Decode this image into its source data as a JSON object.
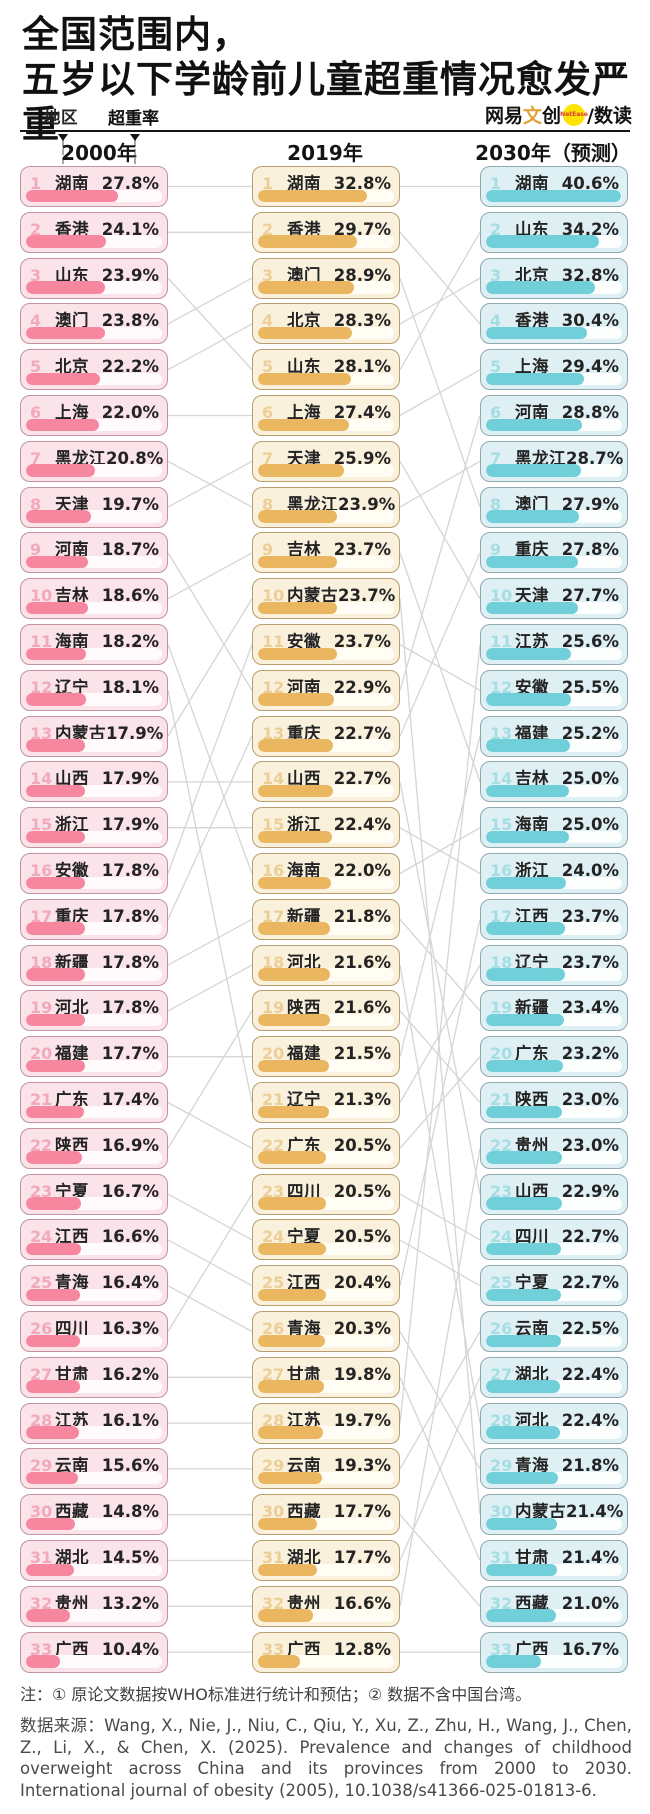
{
  "title": {
    "line1": "全国范围内，",
    "line2": "五岁以下学龄前儿童超重情况愈发严重"
  },
  "header": {
    "region_label": "地区",
    "rate_label": "超重率",
    "logo": {
      "brand_prefix": "网易",
      "brand_accent": "文",
      "brand_suffix": "创",
      "badge": "NetEase",
      "channel": "/数读"
    }
  },
  "chart_data": {
    "type": "bar",
    "subtype": "slopegraph-ranked-bars",
    "title": "全国范围内，五岁以下学龄前儿童超重情况愈发严重",
    "unit": "%",
    "bar_axis_max": 41,
    "legend_position": "column-headers-top",
    "columns": [
      {
        "label": "2000年",
        "theme": {
          "card_bg": "#fae3e9",
          "card_border": "#c2939e",
          "rank_color": "#f2a9bc",
          "bar_color": "#f6879f",
          "track_color": "#fffbfc"
        },
        "rows": [
          {
            "rank": 1,
            "region": "湖南",
            "label": "27.8%",
            "value": 27.8
          },
          {
            "rank": 2,
            "region": "香港",
            "label": "24.1%",
            "value": 24.1
          },
          {
            "rank": 3,
            "region": "山东",
            "label": "23.9%",
            "value": 23.9
          },
          {
            "rank": 4,
            "region": "澳门",
            "label": "23.8%",
            "value": 23.8
          },
          {
            "rank": 5,
            "region": "北京",
            "label": "22.2%",
            "value": 22.2
          },
          {
            "rank": 6,
            "region": "上海",
            "label": "22.0%",
            "value": 22.0
          },
          {
            "rank": 7,
            "region": "黑龙江",
            "label": "20.8%",
            "value": 20.8
          },
          {
            "rank": 8,
            "region": "天津",
            "label": "19.7%",
            "value": 19.7
          },
          {
            "rank": 9,
            "region": "河南",
            "label": "18.7%",
            "value": 18.7
          },
          {
            "rank": 10,
            "region": "吉林",
            "label": "18.6%",
            "value": 18.6
          },
          {
            "rank": 11,
            "region": "海南",
            "label": "18.2%",
            "value": 18.2
          },
          {
            "rank": 12,
            "region": "辽宁",
            "label": "18.1%",
            "value": 18.1
          },
          {
            "rank": 13,
            "region": "内蒙古",
            "label": "17.9%",
            "value": 17.9
          },
          {
            "rank": 14,
            "region": "山西",
            "label": "17.9%",
            "value": 17.9
          },
          {
            "rank": 15,
            "region": "浙江",
            "label": "17.9%",
            "value": 17.9
          },
          {
            "rank": 16,
            "region": "安徽",
            "label": "17.8%",
            "value": 17.8
          },
          {
            "rank": 17,
            "region": "重庆",
            "label": "17.8%",
            "value": 17.8
          },
          {
            "rank": 18,
            "region": "新疆",
            "label": "17.8%",
            "value": 17.8
          },
          {
            "rank": 19,
            "region": "河北",
            "label": "17.8%",
            "value": 17.8
          },
          {
            "rank": 20,
            "region": "福建",
            "label": "17.7%",
            "value": 17.7
          },
          {
            "rank": 21,
            "region": "广东",
            "label": "17.4%",
            "value": 17.4
          },
          {
            "rank": 22,
            "region": "陕西",
            "label": "16.9%",
            "value": 16.9
          },
          {
            "rank": 23,
            "region": "宁夏",
            "label": "16.7%",
            "value": 16.7
          },
          {
            "rank": 24,
            "region": "江西",
            "label": "16.6%",
            "value": 16.6
          },
          {
            "rank": 25,
            "region": "青海",
            "label": "16.4%",
            "value": 16.4
          },
          {
            "rank": 26,
            "region": "四川",
            "label": "16.3%",
            "value": 16.3
          },
          {
            "rank": 27,
            "region": "甘肃",
            "label": "16.2%",
            "value": 16.2
          },
          {
            "rank": 28,
            "region": "江苏",
            "label": "16.1%",
            "value": 16.1
          },
          {
            "rank": 29,
            "region": "云南",
            "label": "15.6%",
            "value": 15.6
          },
          {
            "rank": 30,
            "region": "西藏",
            "label": "14.8%",
            "value": 14.8
          },
          {
            "rank": 31,
            "region": "湖北",
            "label": "14.5%",
            "value": 14.5
          },
          {
            "rank": 32,
            "region": "贵州",
            "label": "13.2%",
            "value": 13.2
          },
          {
            "rank": 33,
            "region": "广西",
            "label": "10.4%",
            "value": 10.4
          }
        ]
      },
      {
        "label": "2019年",
        "theme": {
          "card_bg": "#faf1dd",
          "card_border": "#b89d70",
          "rank_color": "#ecce97",
          "bar_color": "#eab760",
          "track_color": "#fffdf4"
        },
        "rows": [
          {
            "rank": 1,
            "region": "湖南",
            "label": "32.8%",
            "value": 32.8
          },
          {
            "rank": 2,
            "region": "香港",
            "label": "29.7%",
            "value": 29.7
          },
          {
            "rank": 3,
            "region": "澳门",
            "label": "28.9%",
            "value": 28.9
          },
          {
            "rank": 4,
            "region": "北京",
            "label": "28.3%",
            "value": 28.3
          },
          {
            "rank": 5,
            "region": "山东",
            "label": "28.1%",
            "value": 28.1
          },
          {
            "rank": 6,
            "region": "上海",
            "label": "27.4%",
            "value": 27.4
          },
          {
            "rank": 7,
            "region": "天津",
            "label": "25.9%",
            "value": 25.9
          },
          {
            "rank": 8,
            "region": "黑龙江",
            "label": "23.9%",
            "value": 23.9
          },
          {
            "rank": 9,
            "region": "吉林",
            "label": "23.7%",
            "value": 23.7
          },
          {
            "rank": 10,
            "region": "内蒙古",
            "label": "23.7%",
            "value": 23.7
          },
          {
            "rank": 11,
            "region": "安徽",
            "label": "23.7%",
            "value": 23.7
          },
          {
            "rank": 12,
            "region": "河南",
            "label": "22.9%",
            "value": 22.9
          },
          {
            "rank": 13,
            "region": "重庆",
            "label": "22.7%",
            "value": 22.7
          },
          {
            "rank": 14,
            "region": "山西",
            "label": "22.7%",
            "value": 22.7
          },
          {
            "rank": 15,
            "region": "浙江",
            "label": "22.4%",
            "value": 22.4
          },
          {
            "rank": 16,
            "region": "海南",
            "label": "22.0%",
            "value": 22.0
          },
          {
            "rank": 17,
            "region": "新疆",
            "label": "21.8%",
            "value": 21.8
          },
          {
            "rank": 18,
            "region": "河北",
            "label": "21.6%",
            "value": 21.6
          },
          {
            "rank": 19,
            "region": "陕西",
            "label": "21.6%",
            "value": 21.6
          },
          {
            "rank": 20,
            "region": "福建",
            "label": "21.5%",
            "value": 21.5
          },
          {
            "rank": 21,
            "region": "辽宁",
            "label": "21.3%",
            "value": 21.3
          },
          {
            "rank": 22,
            "region": "广东",
            "label": "20.5%",
            "value": 20.5
          },
          {
            "rank": 23,
            "region": "四川",
            "label": "20.5%",
            "value": 20.5
          },
          {
            "rank": 24,
            "region": "宁夏",
            "label": "20.5%",
            "value": 20.5
          },
          {
            "rank": 25,
            "region": "江西",
            "label": "20.4%",
            "value": 20.4
          },
          {
            "rank": 26,
            "region": "青海",
            "label": "20.3%",
            "value": 20.3
          },
          {
            "rank": 27,
            "region": "甘肃",
            "label": "19.8%",
            "value": 19.8
          },
          {
            "rank": 28,
            "region": "江苏",
            "label": "19.7%",
            "value": 19.7
          },
          {
            "rank": 29,
            "region": "云南",
            "label": "19.3%",
            "value": 19.3
          },
          {
            "rank": 30,
            "region": "西藏",
            "label": "17.7%",
            "value": 17.7
          },
          {
            "rank": 31,
            "region": "湖北",
            "label": "17.7%",
            "value": 17.7
          },
          {
            "rank": 32,
            "region": "贵州",
            "label": "16.6%",
            "value": 16.6
          },
          {
            "rank": 33,
            "region": "广西",
            "label": "12.8%",
            "value": 12.8
          }
        ]
      },
      {
        "label": "2030年（预测）",
        "theme": {
          "card_bg": "#dff0f5",
          "card_border": "#8fa9ae",
          "rank_color": "#a5dde5",
          "bar_color": "#71cfda",
          "track_color": "#fdffff"
        },
        "rows": [
          {
            "rank": 1,
            "region": "湖南",
            "label": "40.6%",
            "value": 40.6
          },
          {
            "rank": 2,
            "region": "山东",
            "label": "34.2%",
            "value": 34.2
          },
          {
            "rank": 3,
            "region": "北京",
            "label": "32.8%",
            "value": 32.8
          },
          {
            "rank": 4,
            "region": "香港",
            "label": "30.4%",
            "value": 30.4
          },
          {
            "rank": 5,
            "region": "上海",
            "label": "29.4%",
            "value": 29.4
          },
          {
            "rank": 6,
            "region": "河南",
            "label": "28.8%",
            "value": 28.8
          },
          {
            "rank": 7,
            "region": "黑龙江",
            "label": "28.7%",
            "value": 28.7
          },
          {
            "rank": 8,
            "region": "澳门",
            "label": "27.9%",
            "value": 27.9
          },
          {
            "rank": 9,
            "region": "重庆",
            "label": "27.8%",
            "value": 27.8
          },
          {
            "rank": 10,
            "region": "天津",
            "label": "27.7%",
            "value": 27.7
          },
          {
            "rank": 11,
            "region": "江苏",
            "label": "25.6%",
            "value": 25.6
          },
          {
            "rank": 12,
            "region": "安徽",
            "label": "25.5%",
            "value": 25.5
          },
          {
            "rank": 13,
            "region": "福建",
            "label": "25.2%",
            "value": 25.2
          },
          {
            "rank": 14,
            "region": "吉林",
            "label": "25.0%",
            "value": 25.0
          },
          {
            "rank": 15,
            "region": "海南",
            "label": "25.0%",
            "value": 25.0
          },
          {
            "rank": 16,
            "region": "浙江",
            "label": "24.0%",
            "value": 24.0
          },
          {
            "rank": 17,
            "region": "江西",
            "label": "23.7%",
            "value": 23.7
          },
          {
            "rank": 18,
            "region": "辽宁",
            "label": "23.7%",
            "value": 23.7
          },
          {
            "rank": 19,
            "region": "新疆",
            "label": "23.4%",
            "value": 23.4
          },
          {
            "rank": 20,
            "region": "广东",
            "label": "23.2%",
            "value": 23.2
          },
          {
            "rank": 21,
            "region": "陕西",
            "label": "23.0%",
            "value": 23.0
          },
          {
            "rank": 22,
            "region": "贵州",
            "label": "23.0%",
            "value": 23.0
          },
          {
            "rank": 23,
            "region": "山西",
            "label": "22.9%",
            "value": 22.9
          },
          {
            "rank": 24,
            "region": "四川",
            "label": "22.7%",
            "value": 22.7
          },
          {
            "rank": 25,
            "region": "宁夏",
            "label": "22.7%",
            "value": 22.7
          },
          {
            "rank": 26,
            "region": "云南",
            "label": "22.5%",
            "value": 22.5
          },
          {
            "rank": 27,
            "region": "湖北",
            "label": "22.4%",
            "value": 22.4
          },
          {
            "rank": 28,
            "region": "河北",
            "label": "22.4%",
            "value": 22.4
          },
          {
            "rank": 29,
            "region": "青海",
            "label": "21.8%",
            "value": 21.8
          },
          {
            "rank": 30,
            "region": "内蒙古",
            "label": "21.4%",
            "value": 21.4
          },
          {
            "rank": 31,
            "region": "甘肃",
            "label": "21.4%",
            "value": 21.4
          },
          {
            "rank": 32,
            "region": "西藏",
            "label": "21.0%",
            "value": 21.0
          },
          {
            "rank": 33,
            "region": "广西",
            "label": "16.7%",
            "value": 16.7
          }
        ]
      }
    ],
    "connector_line_color": "#d5d5d5"
  },
  "notes": {
    "note": "注：① 原论文数据按WHO标准进行统计和预估；② 数据不含中国台湾。",
    "source": "数据来源：Wang, X., Nie, J., Niu, C., Qiu, Y., Xu, Z., Zhu, H., Wang, J., Chen, Z., Li, X., & Chen, X. (2025). Prevalence and changes of childhood overweight across China and its provinces from 2000 to 2030. International journal of obesity (2005), 10.1038/s41366-025-01813-6."
  }
}
